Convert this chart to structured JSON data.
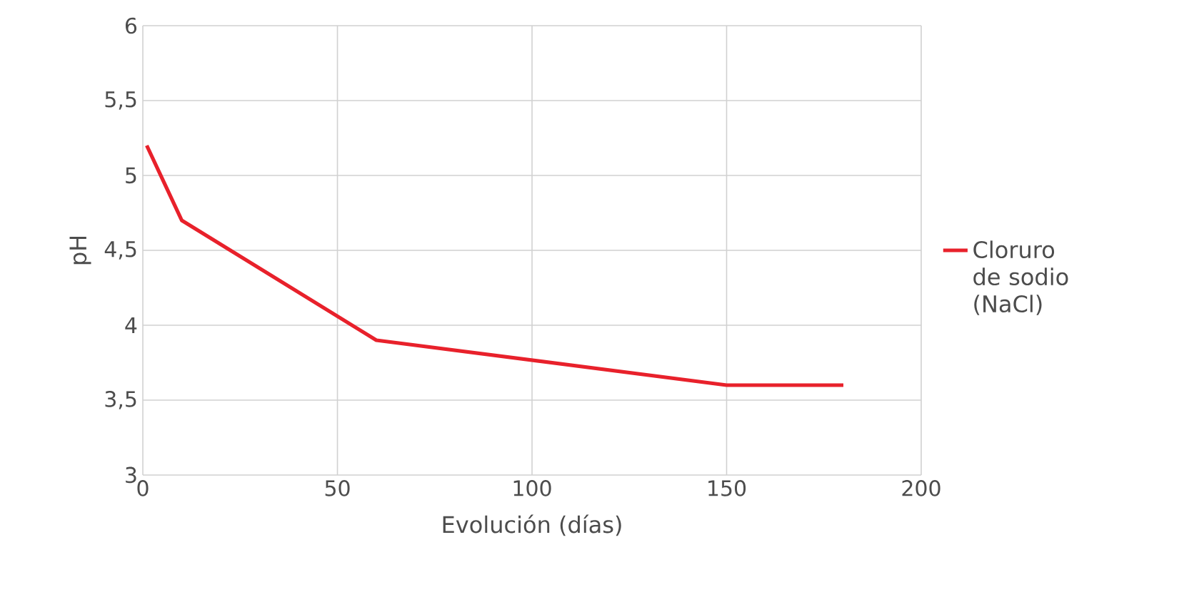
{
  "chart_data": {
    "type": "line",
    "xlabel": "Evolución (días)",
    "ylabel": "pH",
    "x": [
      1,
      10,
      60,
      150,
      180
    ],
    "series": [
      {
        "name": "Cloruro de sodio (NaCl)",
        "color": "#e8212b",
        "values": [
          5.2,
          4.7,
          3.9,
          3.6,
          3.6
        ]
      }
    ],
    "xlim": [
      0,
      200
    ],
    "xticks": [
      0,
      50,
      100,
      150,
      200
    ],
    "ylim": [
      3,
      6
    ],
    "yticks": [
      3,
      {
        "value": 3.5,
        "label": "3,5"
      },
      4,
      {
        "value": 4.5,
        "label": "4,5"
      },
      5,
      {
        "value": 5.5,
        "label": "5,5"
      },
      6
    ],
    "grid": true,
    "legend": "right",
    "marker": "none",
    "line_style": "solid"
  }
}
